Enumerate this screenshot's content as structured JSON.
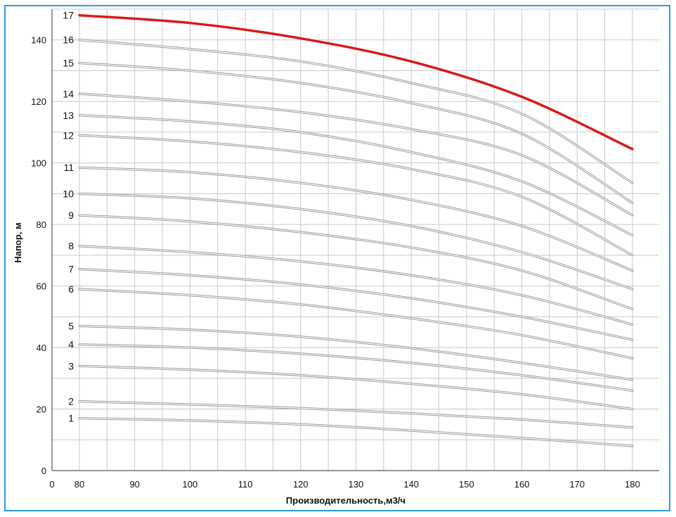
{
  "chart_data": {
    "type": "line",
    "xlabel": "Производительность,м3/ч",
    "ylabel": "Напор, м",
    "xlim": [
      0,
      180
    ],
    "ylim": [
      0,
      150
    ],
    "x_ticks": [
      "0",
      "80",
      "90",
      "100",
      "110",
      "120",
      "130",
      "140",
      "150",
      "160",
      "170",
      "180"
    ],
    "y_ticks": [
      "0",
      "20",
      "40",
      "60",
      "80",
      "100",
      "120",
      "140"
    ],
    "grid": true,
    "x": [
      80,
      100,
      120,
      140,
      160,
      180
    ],
    "series": [
      {
        "name": "1",
        "values": [
          17,
          16.3,
          15,
          13,
          10.6,
          8
        ]
      },
      {
        "name": "2",
        "values": [
          22.5,
          21.5,
          20.3,
          18.6,
          16.6,
          14
        ]
      },
      {
        "name": "3",
        "values": [
          34,
          32.8,
          31,
          28.2,
          24.8,
          20
        ]
      },
      {
        "name": "4",
        "values": [
          41,
          40,
          38,
          35,
          31,
          26
        ]
      },
      {
        "name": "5",
        "values": [
          47,
          45.8,
          43.5,
          39.8,
          35,
          29.5
        ]
      },
      {
        "name": "6",
        "values": [
          59,
          57,
          54,
          49.5,
          44,
          36.5
        ]
      },
      {
        "name": "7",
        "values": [
          65.5,
          63.5,
          60.5,
          56,
          50,
          42.5
        ]
      },
      {
        "name": "8",
        "values": [
          73,
          71,
          68,
          63.5,
          57,
          47.5
        ]
      },
      {
        "name": "9",
        "values": [
          83,
          81,
          77.5,
          72.5,
          65,
          52.5
        ]
      },
      {
        "name": "10",
        "values": [
          90,
          88.5,
          85,
          79.5,
          71,
          59
        ]
      },
      {
        "name": "11",
        "values": [
          98.5,
          97,
          93.5,
          88,
          79.5,
          65
        ]
      },
      {
        "name": "12",
        "values": [
          109,
          107,
          103.5,
          98,
          89,
          70
        ]
      },
      {
        "name": "13",
        "values": [
          115.5,
          113.5,
          110,
          103.5,
          94,
          76.5
        ]
      },
      {
        "name": "14",
        "values": [
          122.5,
          120,
          116.5,
          111,
          102.5,
          83
        ]
      },
      {
        "name": "15",
        "values": [
          132.5,
          130,
          126,
          119.5,
          109.5,
          87
        ]
      },
      {
        "name": "16",
        "values": [
          140,
          137,
          133,
          126,
          116,
          93.5
        ]
      },
      {
        "name": "17",
        "values": [
          148,
          145.5,
          140.5,
          133,
          121.5,
          104.5
        ],
        "color": "#d71a1a"
      }
    ],
    "colors": {
      "curve": "#9a9a9a",
      "highlight": "#d71a1a",
      "grid": "#c9c9c9",
      "frame": "#2d9be0"
    }
  }
}
